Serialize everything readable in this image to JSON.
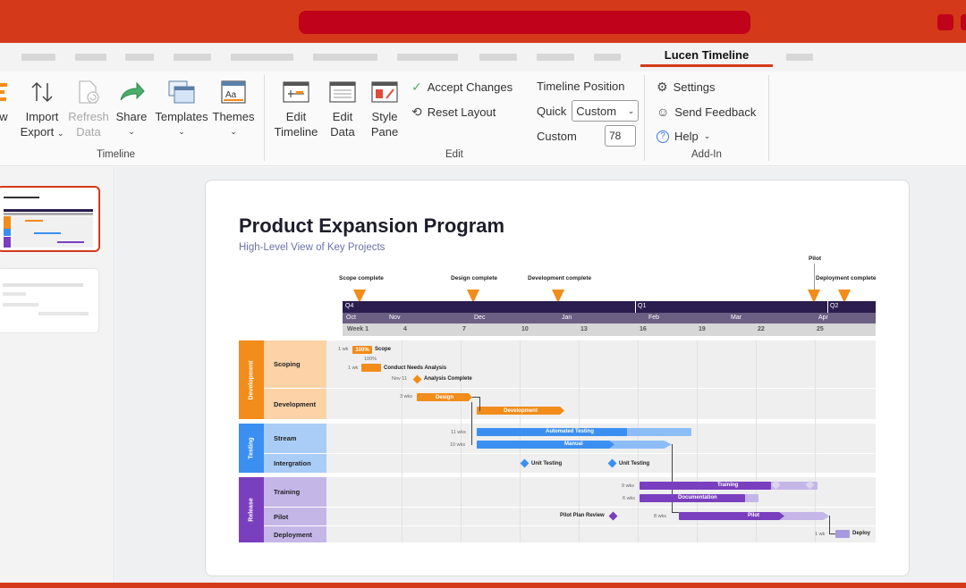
{
  "app": {
    "active_tab": "Lucen Timeline"
  },
  "ribbon": {
    "timeline_group": {
      "label": "Timeline",
      "partial_left_label": "w",
      "import_label_1": "Import",
      "import_label_2": "Export",
      "refresh_label_1": "Refresh",
      "refresh_label_2": "Data",
      "share_label": "Share",
      "templates_label": "Templates",
      "themes_label": "Themes"
    },
    "edit_group": {
      "label": "Edit",
      "edit_timeline_1": "Edit",
      "edit_timeline_2": "Timeline",
      "edit_data_1": "Edit",
      "edit_data_2": "Data",
      "style_pane_1": "Style",
      "style_pane_2": "Pane",
      "accept_changes": "Accept Changes",
      "reset_layout": "Reset Layout",
      "timeline_position": "Timeline Position",
      "quick_label": "Quick",
      "quick_value": "Custom",
      "custom_label": "Custom",
      "custom_value": "78"
    },
    "addin_group": {
      "label": "Add-In",
      "settings": "Settings",
      "send_feedback": "Send Feedback",
      "help": "Help"
    }
  },
  "slide": {
    "title": "Product Expansion Program",
    "subtitle": "High-Level View of Key Projects",
    "milestones": {
      "scope": "Scope complete",
      "design": "Design complete",
      "development": "Development complete",
      "pilot": "Pilot",
      "deployment": "Deployment complete"
    },
    "quarters": [
      "Q4",
      "Q1",
      "Q2"
    ],
    "months": [
      "Oct",
      "Nov",
      "Dec",
      "Jan",
      "Feb",
      "Mar",
      "Apr"
    ],
    "weeks": [
      "Week 1",
      "4",
      "7",
      "10",
      "13",
      "16",
      "19",
      "22",
      "25"
    ],
    "groups": [
      "Development",
      "Testing",
      "Release"
    ],
    "rows": [
      "Scoping",
      "Development",
      "Stream",
      "Intergration",
      "Training",
      "Pilot",
      "Deployment"
    ],
    "tasks": {
      "scope_dur": "1 wk",
      "scope_pct": "100%",
      "scope_name": "Scope",
      "needs_pct": "100%",
      "needs_dur": "1 wk",
      "needs_name": "Conduct Needs Analysis",
      "analysis_date": "Nov 11",
      "analysis_name": "Analysis Complete",
      "design_dur": "3 wks",
      "design_name": "Design",
      "development_name": "Development",
      "auto_dur": "11 wks",
      "auto_name": "Automated Testing",
      "manual_dur": "10 wks",
      "manual_name": "Manual",
      "unit1": "Unit Testing",
      "unit2": "Unit Testing",
      "training_dur": "9 wks",
      "training_name": "Training",
      "doc_dur": "6 wks",
      "doc_name": "Documentation",
      "pilot_review": "Pilot Plan Review",
      "pilot_dur": "8 wks",
      "pilot_name": "Pilot",
      "deploy_dur": "1 wk",
      "deploy_name": "Deploy"
    }
  },
  "colors": {
    "brand": "#d43a1a",
    "orange": "#f28c1a",
    "blue": "#3b8ff0",
    "purple": "#7a3fbf",
    "lilac": "#a89ae0"
  }
}
